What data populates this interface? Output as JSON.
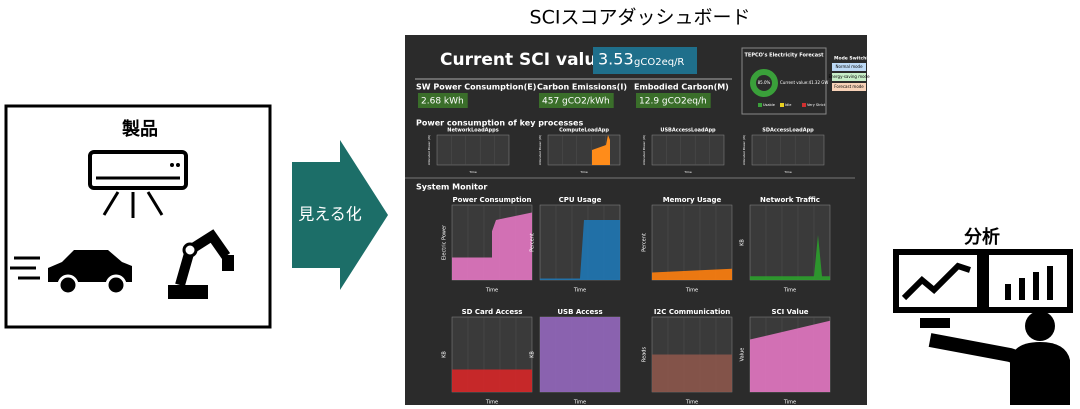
{
  "header": {
    "title": "SCIスコアダッシュボード"
  },
  "product": {
    "label": "製品"
  },
  "arrow": {
    "label": "見える化"
  },
  "analysis": {
    "label": "分析"
  },
  "dashboard": {
    "sci_label": "Current SCI value",
    "sci_value": "3.53",
    "sci_unit": "gCO2eq/R",
    "metrics": [
      {
        "label": "SW Power Consumption(E)",
        "value": "2.68 kWh"
      },
      {
        "label": "Carbon Emissions(I)",
        "value": "457 gCO2/kWh"
      },
      {
        "label": "Embodied Carbon(M)",
        "value": "12.9 gCO2eq/h"
      }
    ],
    "forecast": {
      "title": "TEPCO's Electricity Forecast",
      "percent": "85.0%",
      "current": "Current value:41.32 GW",
      "legend": [
        "Usable",
        "Idle",
        "Very Strict"
      ]
    },
    "modes": {
      "title": "Mode Switching",
      "items": [
        "Normal mode",
        "Energy-saving mode",
        "Forecast mode"
      ]
    },
    "key_processes": {
      "title": "Power consumption of key processes",
      "ylabel": "Allocated Power (W)",
      "xlabel": "Time",
      "charts": [
        {
          "title": "NetworkLoadApps",
          "color": "#555555"
        },
        {
          "title": "ComputeLoadApp",
          "color": "#ff8c1a"
        },
        {
          "title": "USBAccessLoadApp",
          "color": "#555555"
        },
        {
          "title": "SDAccessLoadApp",
          "color": "#555555"
        }
      ]
    },
    "system_monitor": {
      "title": "System Monitor",
      "xlabel": "Time",
      "charts": [
        {
          "title": "Power Consumption",
          "ylabel": "Electric Power",
          "color": "#e377c2"
        },
        {
          "title": "CPU Usage",
          "ylabel": "Percent",
          "color": "#1f77b4"
        },
        {
          "title": "Memory Usage",
          "ylabel": "Percent",
          "color": "#ff7f0e"
        },
        {
          "title": "Network Traffic",
          "ylabel": "KB",
          "color": "#2ca02c"
        },
        {
          "title": "SD Card Access",
          "ylabel": "KB",
          "color": "#d62728"
        },
        {
          "title": "USB Access",
          "ylabel": "KB",
          "color": "#9467bd"
        },
        {
          "title": "I2C Communication",
          "ylabel": "Reads",
          "color": "#8c564b"
        },
        {
          "title": "SCI Value",
          "ylabel": "Value",
          "color": "#e377c2"
        }
      ]
    }
  }
}
